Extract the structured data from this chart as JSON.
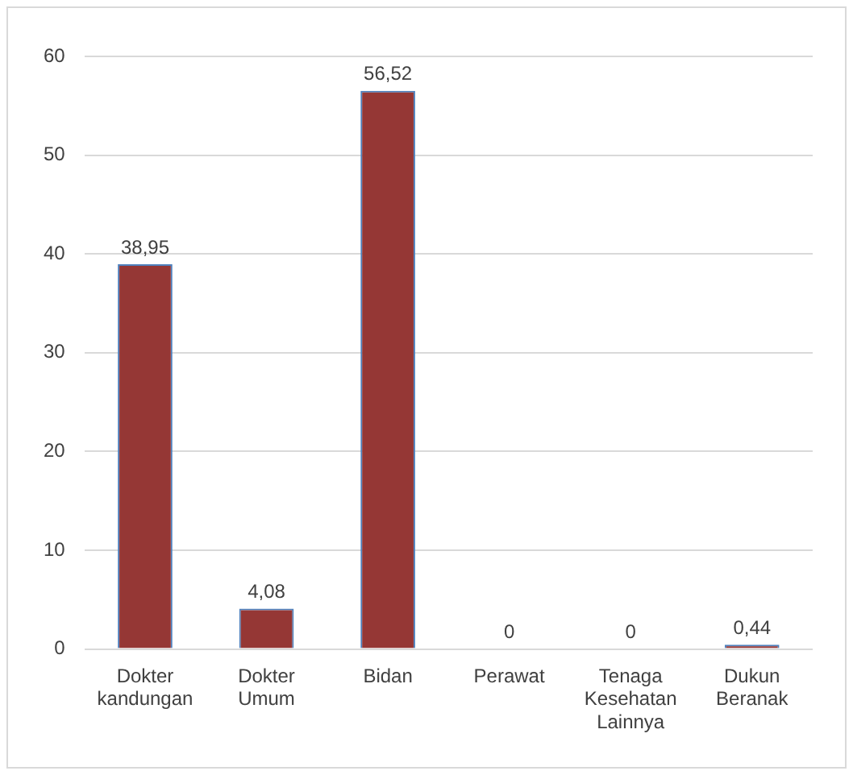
{
  "chart_data": {
    "type": "bar",
    "categories": [
      "Dokter kandungan",
      "Dokter Umum",
      "Bidan",
      "Perawat",
      "Tenaga Kesehatan Lainnya",
      "Dukun Beranak"
    ],
    "values": [
      38.95,
      4.08,
      56.52,
      0,
      0,
      0.44
    ],
    "value_labels": [
      "38,95",
      "4,08",
      "56,52",
      "0",
      "0",
      "0,44"
    ],
    "color": "#953735",
    "ylim": [
      0,
      60
    ],
    "yticks": [
      0,
      10,
      20,
      30,
      40,
      50,
      60
    ],
    "grid": "y",
    "legend": false
  }
}
